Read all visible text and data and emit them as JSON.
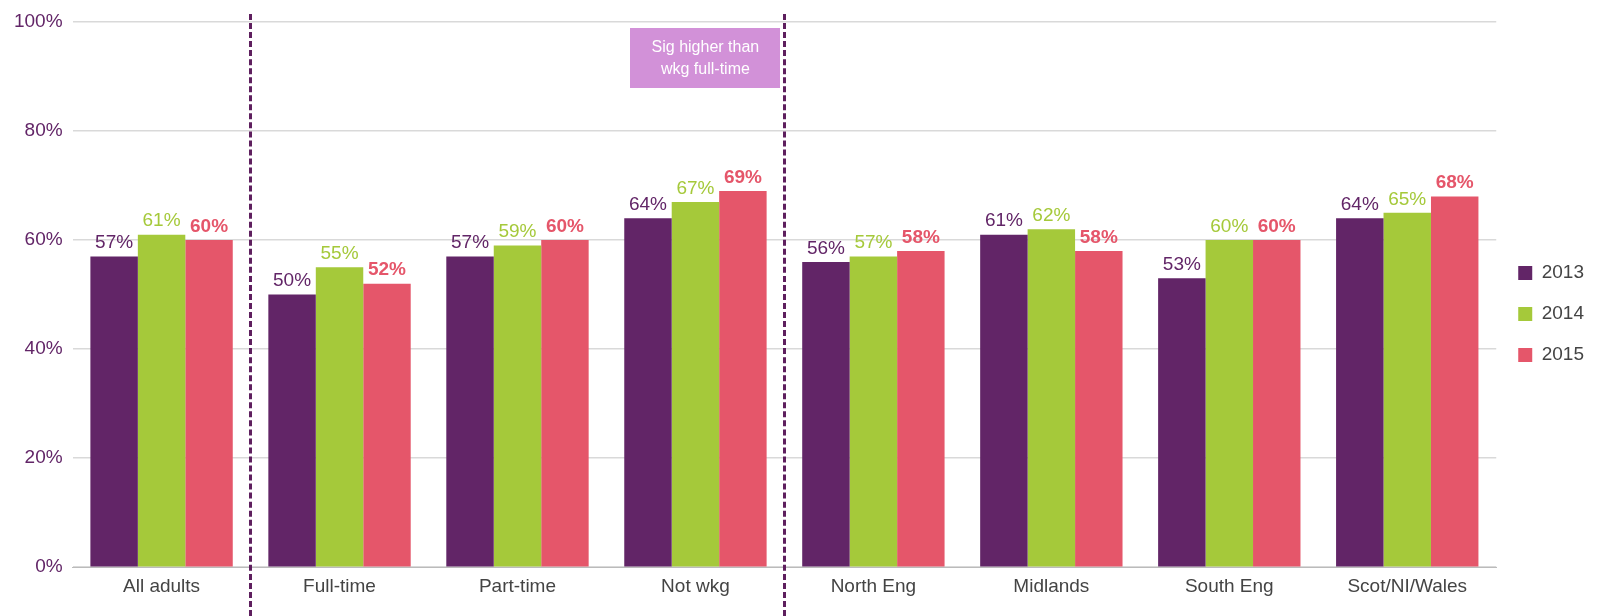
{
  "chart_data": {
    "type": "bar",
    "categories": [
      "All adults",
      "Full-time",
      "Part-time",
      "Not wkg",
      "North Eng",
      "Midlands",
      "South Eng",
      "Scot/NI/Wales"
    ],
    "series": [
      {
        "name": "2013",
        "color": "#622567",
        "values": [
          57,
          50,
          57,
          64,
          56,
          61,
          53,
          64
        ],
        "value_labels": [
          "57%",
          "50%",
          "57%",
          "64%",
          "56%",
          "61%",
          "53%",
          "64%"
        ]
      },
      {
        "name": "2014",
        "color": "#a5c93a",
        "values": [
          61,
          55,
          59,
          67,
          57,
          62,
          60,
          65
        ],
        "value_labels": [
          "61%",
          "55%",
          "59%",
          "67%",
          "57%",
          "62%",
          "60%",
          "65%"
        ]
      },
      {
        "name": "2015",
        "color": "#e5566a",
        "values": [
          60,
          52,
          60,
          69,
          58,
          58,
          60,
          68
        ],
        "value_labels": [
          "60%",
          "52%",
          "60%",
          "69%",
          "58%",
          "58%",
          "60%",
          "68%"
        ]
      }
    ],
    "ylim": [
      0,
      100
    ],
    "yticks": [
      {
        "value": 0,
        "label": "0%"
      },
      {
        "value": 20,
        "label": "20%"
      },
      {
        "value": 40,
        "label": "40%"
      },
      {
        "value": 60,
        "label": "60%"
      },
      {
        "value": 80,
        "label": "80%"
      },
      {
        "value": 100,
        "label": "100%"
      }
    ],
    "grid": "y",
    "legend": "right",
    "annotations": [
      "Sig higher than wkg full-time"
    ]
  }
}
